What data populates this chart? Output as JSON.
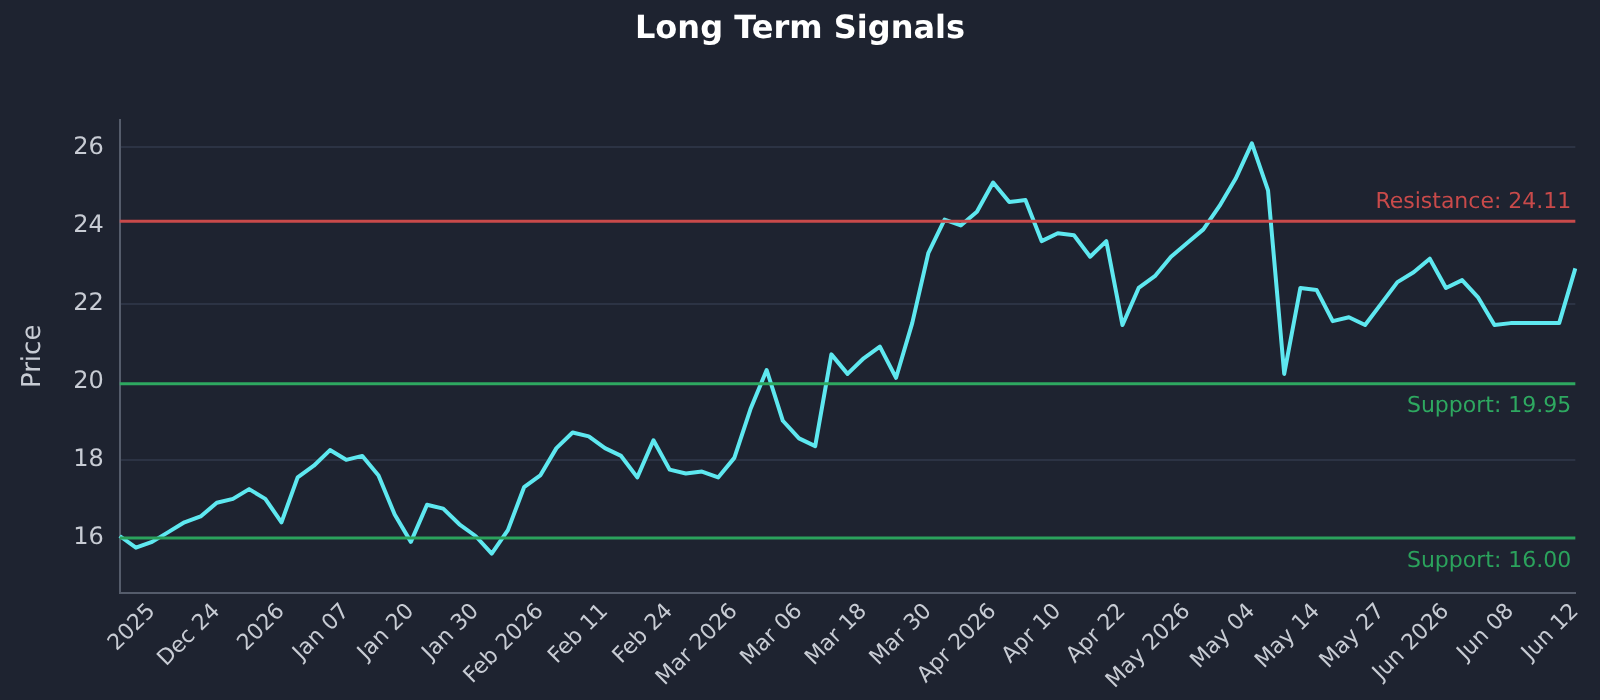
{
  "chart_data": {
    "type": "line",
    "title": "Long Term Signals",
    "ylabel": "Price",
    "categories": [
      null,
      null,
      "2025",
      null,
      null,
      null,
      "Dec 24",
      null,
      null,
      null,
      "2026",
      null,
      null,
      null,
      "Jan 07",
      null,
      null,
      null,
      "Jan 20",
      null,
      null,
      null,
      "Jan 30",
      null,
      null,
      null,
      "Feb 2026",
      null,
      null,
      null,
      "Feb 11",
      null,
      null,
      null,
      "Feb 24",
      null,
      null,
      null,
      "Mar 2026",
      null,
      null,
      null,
      "Mar 06",
      null,
      null,
      null,
      "Mar 18",
      null,
      null,
      null,
      "Mar 30",
      null,
      null,
      null,
      "Apr 2026",
      null,
      null,
      null,
      "Apr 10",
      null,
      null,
      null,
      "Apr 22",
      null,
      null,
      null,
      "May 2026",
      null,
      null,
      null,
      "May 04",
      null,
      null,
      null,
      "May 14",
      null,
      null,
      null,
      "May 27",
      null,
      null,
      null,
      "Jun 2026",
      null,
      null,
      null,
      "Jun 08",
      null,
      null,
      null,
      "Jun 12"
    ],
    "series": [
      {
        "color": "#5ee8f0",
        "values": [
          16.05,
          15.75,
          15.9,
          16.15,
          16.4,
          16.55,
          16.9,
          17.0,
          17.25,
          17.0,
          16.4,
          17.55,
          17.85,
          18.25,
          18.0,
          18.1,
          17.6,
          16.6,
          15.9,
          16.85,
          16.75,
          16.35,
          16.05,
          15.6,
          16.2,
          17.3,
          17.6,
          18.3,
          18.7,
          18.6,
          18.3,
          18.1,
          17.55,
          18.5,
          17.75,
          17.65,
          17.7,
          17.55,
          18.05,
          19.3,
          20.3,
          19.0,
          18.55,
          18.35,
          20.7,
          20.2,
          20.6,
          20.9,
          20.1,
          21.5,
          23.3,
          24.15,
          24.0,
          24.35,
          25.1,
          24.6,
          24.65,
          23.6,
          23.8,
          23.75,
          23.2,
          23.6,
          21.45,
          22.4,
          22.7,
          23.2,
          23.55,
          23.9,
          24.5,
          25.2,
          26.1,
          24.9,
          20.2,
          22.4,
          22.35,
          21.55,
          21.65,
          21.45,
          22.0,
          22.55,
          22.8,
          23.15,
          22.4,
          22.6,
          22.15,
          21.45,
          21.5,
          21.5,
          21.5,
          21.5,
          22.9
        ]
      }
    ],
    "ylim": [
      14.6,
      26.7
    ],
    "yticks": [
      16,
      18,
      20,
      22,
      24,
      26
    ],
    "grid": "y",
    "marker": "none",
    "line_style": "solid",
    "ref_lines": [
      {
        "axis": "y",
        "value": 24.11,
        "label": "Resistance: 24.11",
        "color": "#c94a4a"
      },
      {
        "axis": "y",
        "value": 19.95,
        "label": "Support: 19.95",
        "color": "#2ea860"
      },
      {
        "axis": "y",
        "value": 16.0,
        "label": "Support: 16.00",
        "color": "#2ba25c"
      }
    ]
  }
}
